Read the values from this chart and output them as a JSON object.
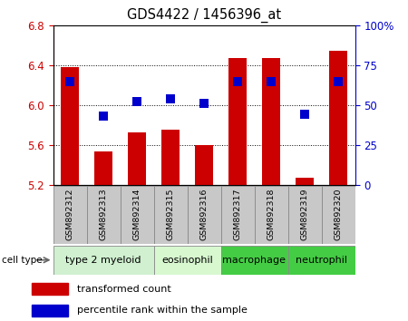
{
  "title": "GDS4422 / 1456396_at",
  "samples": [
    "GSM892312",
    "GSM892313",
    "GSM892314",
    "GSM892315",
    "GSM892316",
    "GSM892317",
    "GSM892318",
    "GSM892319",
    "GSM892320"
  ],
  "transformed_count": [
    6.38,
    5.53,
    5.73,
    5.75,
    5.6,
    6.47,
    6.47,
    5.27,
    6.55
  ],
  "percentile_rank": [
    65,
    43,
    52,
    54,
    51,
    65,
    65,
    44,
    65
  ],
  "cell_types": [
    {
      "label": "type 2 myeloid",
      "start": 0,
      "end": 2,
      "color": "#d0f0d0"
    },
    {
      "label": "eosinophil",
      "start": 3,
      "end": 4,
      "color": "#d8f8d0"
    },
    {
      "label": "macrophage",
      "start": 5,
      "end": 6,
      "color": "#44cc44"
    },
    {
      "label": "neutrophil",
      "start": 7,
      "end": 8,
      "color": "#44cc44"
    }
  ],
  "ylim_left": [
    5.2,
    6.8
  ],
  "ylim_right": [
    0,
    100
  ],
  "yticks_left": [
    5.2,
    5.6,
    6.0,
    6.4,
    6.8
  ],
  "yticks_right": [
    0,
    25,
    50,
    75,
    100
  ],
  "ytick_labels_right": [
    "0",
    "25",
    "50",
    "75",
    "100%"
  ],
  "bar_color": "#cc0000",
  "dot_color": "#0000cc",
  "bar_width": 0.55,
  "dot_size": 55,
  "bg_color": "#ffffff",
  "sample_box_color": "#c8c8c8",
  "grid_color": "#000000"
}
